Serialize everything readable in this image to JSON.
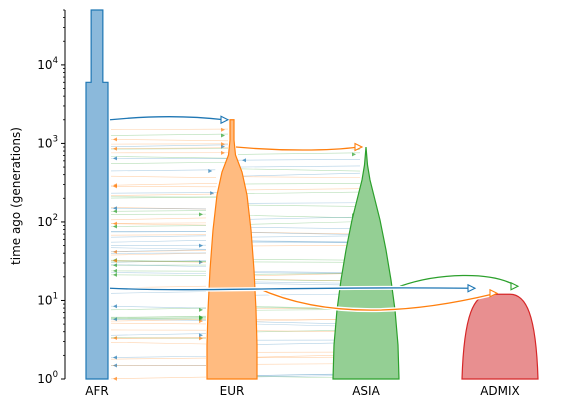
{
  "chart_data": {
    "type": "demography",
    "ylabel": "time ago (generations)",
    "yscale": "log",
    "ylim": [
      1,
      50000
    ],
    "y_ticks": [
      1,
      10,
      100,
      1000,
      10000
    ],
    "y_tick_labels": [
      [
        "10",
        "0"
      ],
      [
        "10",
        "1"
      ],
      [
        "10",
        "2"
      ],
      [
        "10",
        "3"
      ],
      [
        "10",
        "4"
      ]
    ],
    "populations": [
      {
        "name": "AFR",
        "color": "#1f77b4",
        "fill": "#8bb9db",
        "epochs": [
          {
            "start": 1,
            "end": 6000,
            "relative_width": 0.6
          },
          {
            "start": 6000,
            "end": 50000,
            "relative_width": 0.32
          }
        ]
      },
      {
        "name": "EUR",
        "color": "#ff7f0e",
        "fill": "#ffbb80",
        "shape": "bottleneck-then-growth",
        "split_from": "AFR",
        "split_time": 2000
      },
      {
        "name": "ASIA",
        "color": "#2ca02c",
        "fill": "#94cf94",
        "shape": "growth",
        "split_from": "EUR",
        "split_time": 900
      },
      {
        "name": "ADMIX",
        "color": "#d62728",
        "fill": "#e88f90",
        "shape": "growth",
        "admixture_time": 12,
        "sources": [
          "AFR",
          "EUR",
          "ASIA"
        ]
      }
    ],
    "splits": [
      {
        "from": "AFR",
        "to": "EUR",
        "time": 2000
      },
      {
        "from": "EUR",
        "to": "ASIA",
        "time": 900
      }
    ],
    "admixture_pulses": [
      {
        "from": "AFR",
        "to": "ADMIX",
        "time": 12
      },
      {
        "from": "EUR",
        "to": "ADMIX",
        "time": 12
      },
      {
        "from": "ASIA",
        "to": "ADMIX",
        "time": 12
      }
    ],
    "migration": {
      "pairs": [
        "AFR-EUR",
        "AFR-ASIA",
        "EUR-ASIA"
      ],
      "time_range": [
        1,
        2000
      ]
    }
  }
}
